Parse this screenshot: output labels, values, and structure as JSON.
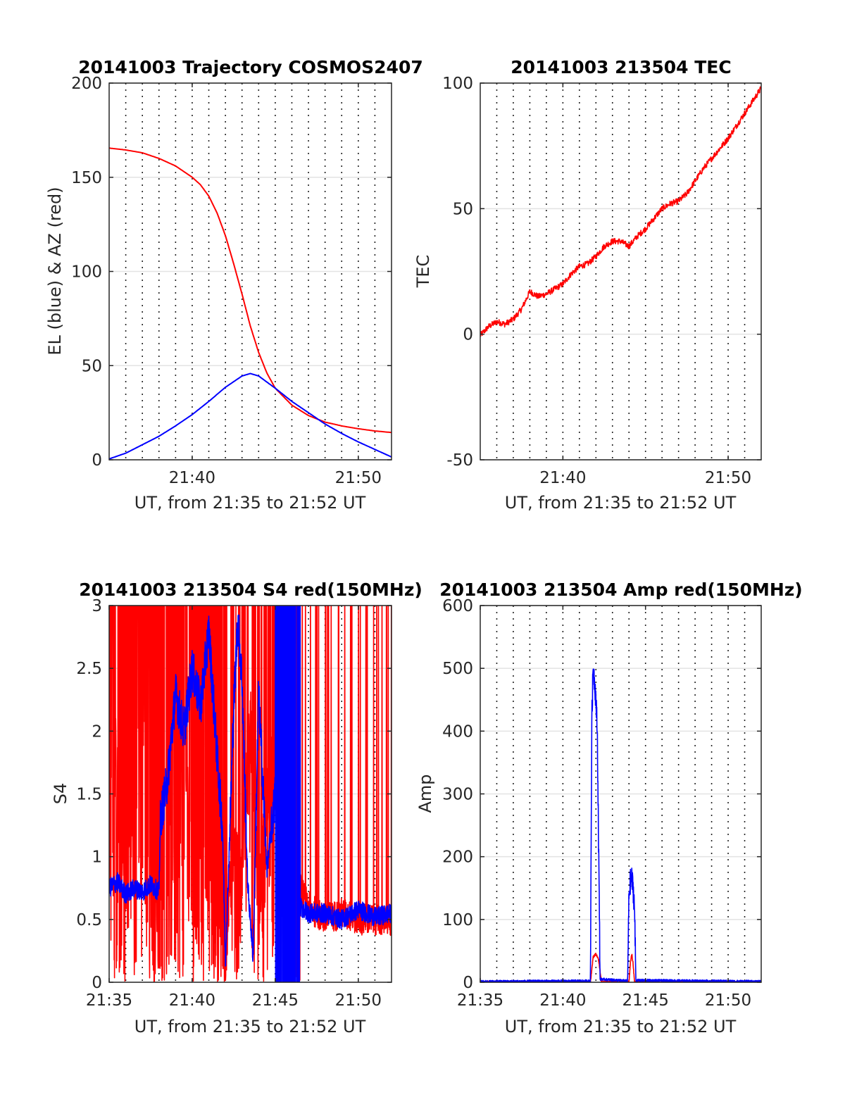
{
  "chart_data": [
    {
      "type": "line",
      "title": "20141003 Trajectory COSMOS2407",
      "xlabel": "UT, from 21:35 to 21:52 UT",
      "ylabel": "EL (blue) & AZ (red)",
      "xlim": [
        "21:35",
        "21:52"
      ],
      "ylim": [
        0,
        200
      ],
      "xticks": [
        "21:40",
        "21:50"
      ],
      "yticks": [
        0,
        50,
        100,
        150,
        200
      ],
      "grid": "y solid, x dotted every 1 min",
      "x_unit": "minutes",
      "series": [
        {
          "color": "#ff0000",
          "x": [
            "21:35",
            "21:36",
            "21:37",
            "21:38",
            "21:39",
            "21:40",
            "21:40:30",
            "21:41",
            "21:41:30",
            "21:42",
            "21:42:30",
            "21:43",
            "21:43:30",
            "21:44",
            "21:44:30",
            "21:45",
            "21:46",
            "21:47",
            "21:48",
            "21:49",
            "21:50",
            "21:51",
            "21:52"
          ],
          "values": [
            165.5,
            164.5,
            163,
            160,
            156,
            150,
            146,
            140,
            131,
            119,
            104,
            88,
            71,
            57,
            46,
            38,
            29,
            23.5,
            20,
            18,
            16.5,
            15.3,
            14.5
          ]
        },
        {
          "color": "#0000ff",
          "x": [
            "21:35",
            "21:36",
            "21:37",
            "21:38",
            "21:39",
            "21:40",
            "21:41",
            "21:42",
            "21:43",
            "21:43:30",
            "21:44",
            "21:45",
            "21:46",
            "21:47",
            "21:48",
            "21:49",
            "21:50",
            "21:51",
            "21:52"
          ],
          "values": [
            0.5,
            3.5,
            8,
            12.5,
            18,
            24,
            31,
            38.5,
            44.5,
            45.8,
            44.5,
            38,
            31,
            25,
            19,
            14,
            9.5,
            5.5,
            1.5
          ]
        }
      ]
    },
    {
      "type": "line",
      "title": "20141003 213504 TEC",
      "xlabel": "UT, from 21:35 to 21:52 UT",
      "ylabel": "TEC",
      "xlim": [
        "21:35",
        "21:52"
      ],
      "ylim": [
        -50,
        100
      ],
      "xticks": [
        "21:40",
        "21:50"
      ],
      "yticks": [
        -50,
        0,
        50,
        100
      ],
      "grid": "y solid, x dotted every 1 min",
      "x_unit": "minutes",
      "series": [
        {
          "color": "#ff0000",
          "x": [
            "21:35",
            "21:35:30",
            "21:36",
            "21:36:30",
            "21:37",
            "21:37:30",
            "21:38",
            "21:38:30",
            "21:39",
            "21:39:30",
            "21:40",
            "21:40:30",
            "21:41",
            "21:41:30",
            "21:42",
            "21:42:30",
            "21:43",
            "21:43:30",
            "21:44",
            "21:44:30",
            "21:45",
            "21:45:30",
            "21:46",
            "21:46:30",
            "21:47",
            "21:47:30",
            "21:48",
            "21:48:30",
            "21:49",
            "21:49:30",
            "21:50",
            "21:50:30",
            "21:51",
            "21:51:30",
            "21:52"
          ],
          "values": [
            -0.5,
            3,
            5,
            4,
            6,
            10,
            17,
            15,
            16,
            18,
            20,
            24,
            27,
            28,
            31,
            35,
            37,
            37,
            35,
            39,
            42,
            46,
            50,
            52,
            53,
            56,
            61,
            66,
            70,
            74,
            78,
            83,
            88,
            93,
            98
          ]
        }
      ]
    },
    {
      "type": "line",
      "title": "20141003 213504 S4 red(150MHz)",
      "xlabel": "UT, from 21:35 to 21:52 UT",
      "ylabel": "S4",
      "xlim": [
        "21:35",
        "21:52"
      ],
      "ylim": [
        0,
        3
      ],
      "xticks": [
        "21:35",
        "21:40",
        "21:45",
        "21:50"
      ],
      "yticks": [
        0,
        0.5,
        1,
        1.5,
        2,
        2.5,
        3
      ],
      "grid": "y solid, x dotted every 1 min",
      "x_unit": "minutes",
      "series": [
        {
          "color": "#ff0000",
          "style": "saturated noise",
          "x": [
            "21:35",
            "21:36",
            "21:37",
            "21:38",
            "21:38:30",
            "21:39",
            "21:40",
            "21:41",
            "21:42",
            "21:42:30",
            "21:43",
            "21:43:30",
            "21:44",
            "21:44:30",
            "21:45",
            "21:46",
            "21:47",
            "21:48",
            "21:49",
            "21:50",
            "21:51",
            "21:52"
          ],
          "values": [
            2.9,
            1.1,
            2.5,
            0.6,
            1.5,
            2.4,
            1.7,
            0.9,
            0.3,
            1.1,
            0.8,
            2.1,
            0.6,
            1.4,
            2.0,
            0.9,
            0.6,
            0.5,
            0.55,
            0.5,
            0.5,
            0.48
          ],
          "fill_until": "21:46:30"
        },
        {
          "color": "#0000ff",
          "style": "noisy",
          "x": [
            "21:35",
            "21:35:30",
            "21:36",
            "21:36:30",
            "21:37",
            "21:37:30",
            "21:38",
            "21:38:05",
            "21:38:30",
            "21:39",
            "21:39:30",
            "21:40",
            "21:40:30",
            "21:41",
            "21:41:30",
            "21:41:50",
            "21:42",
            "21:42:10",
            "21:42:30",
            "21:42:45",
            "21:43",
            "21:43:20",
            "21:43:40",
            "21:44",
            "21:44:15",
            "21:44:30",
            "21:45",
            "21:45:30",
            "21:46",
            "21:46:30",
            "21:47",
            "21:48",
            "21:49",
            "21:50",
            "21:51",
            "21:52"
          ],
          "values": [
            0.75,
            0.8,
            0.7,
            0.75,
            0.72,
            0.78,
            0.72,
            1.3,
            1.6,
            2.3,
            2.0,
            2.5,
            2.2,
            2.8,
            1.8,
            1.2,
            0.15,
            0.8,
            2.2,
            2.9,
            2.4,
            0.8,
            0.2,
            2.3,
            1.6,
            0.9,
            1.5,
            0.5,
            0.8,
            0.6,
            0.55,
            0.55,
            0.5,
            0.58,
            0.52,
            0.55
          ],
          "fill_band": [
            "21:45",
            "21:46:30"
          ]
        }
      ]
    },
    {
      "type": "line",
      "title": "20141003 213504 Amp red(150MHz)",
      "xlabel": "UT, from 21:35 to 21:52 UT",
      "ylabel": "Amp",
      "xlim": [
        "21:35",
        "21:52"
      ],
      "ylim": [
        0,
        600
      ],
      "xticks": [
        "21:35",
        "21:40",
        "21:45",
        "21:50"
      ],
      "yticks": [
        0,
        100,
        200,
        300,
        400,
        500,
        600
      ],
      "grid": "y solid, x dotted every 1 min",
      "x_unit": "minutes",
      "series": [
        {
          "color": "#ff0000",
          "x": [
            "21:35",
            "21:41:40",
            "21:41:50",
            "21:42",
            "21:42:10",
            "21:42:20",
            "21:44",
            "21:44:05",
            "21:44:10",
            "21:44:15",
            "21:44:20",
            "21:52"
          ],
          "values": [
            0,
            0,
            40,
            45,
            35,
            0,
            0,
            30,
            45,
            30,
            0,
            0
          ]
        },
        {
          "color": "#0000ff",
          "x": [
            "21:35",
            "21:41:40",
            "21:41:45",
            "21:41:50",
            "21:41:55",
            "21:42",
            "21:42:05",
            "21:42:10",
            "21:42:15",
            "21:43:55",
            "21:44",
            "21:44:05",
            "21:44:10",
            "21:44:15",
            "21:44:20",
            "21:44:25",
            "21:52"
          ],
          "values": [
            1,
            2,
            420,
            505,
            480,
            450,
            400,
            210,
            5,
            2,
            140,
            160,
            165,
            150,
            120,
            3,
            1
          ]
        }
      ]
    }
  ]
}
